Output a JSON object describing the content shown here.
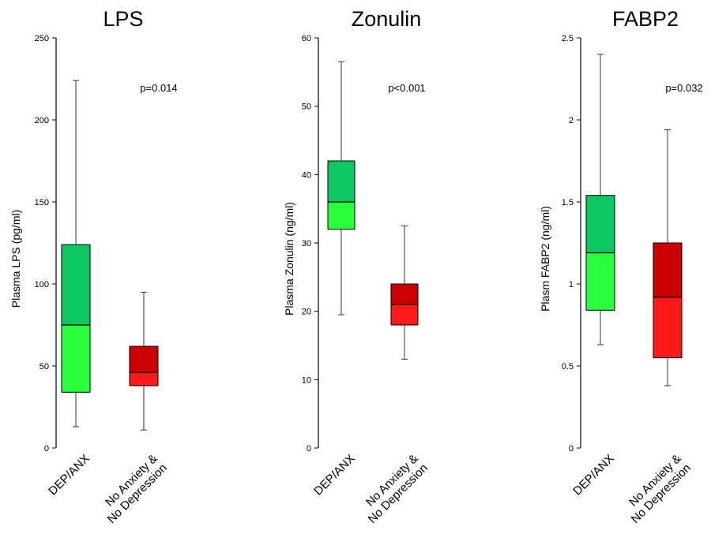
{
  "chart_data": [
    {
      "type": "box",
      "title": "LPS",
      "ylabel": "Plasma LPS (pg/ml)",
      "ylim": [
        0,
        250
      ],
      "yticks": [
        0,
        50,
        100,
        150,
        200,
        250
      ],
      "annotation": "p=0.014",
      "categories": [
        "DEP/ANX",
        "No Anxiety &\nNo Depression"
      ],
      "boxes": [
        {
          "min": 13,
          "q1": 34,
          "median": 75,
          "q3": 124,
          "max": 224
        },
        {
          "min": 11,
          "q1": 38,
          "median": 46,
          "q3": 62,
          "max": 95
        }
      ]
    },
    {
      "type": "box",
      "title": "Zonulin",
      "ylabel": "Plasma Zonulin (ng/ml)",
      "ylim": [
        0,
        60
      ],
      "yticks": [
        0,
        10,
        20,
        30,
        40,
        50,
        60
      ],
      "annotation": "p<0.001",
      "categories": [
        "DEP/ANX",
        "No Anxiety &\nNo Depression"
      ],
      "boxes": [
        {
          "min": 19.5,
          "q1": 32,
          "median": 36,
          "q3": 42,
          "max": 56.5
        },
        {
          "min": 13,
          "q1": 18,
          "median": 21,
          "q3": 24,
          "max": 32.5
        }
      ]
    },
    {
      "type": "box",
      "title": "FABP2",
      "ylabel": "Plasm FABP2 (ng/ml)",
      "ylim": [
        0,
        2.5
      ],
      "yticks": [
        0,
        0.5,
        1,
        1.5,
        2,
        2.5
      ],
      "annotation": "p=0.032",
      "categories": [
        "DEP/ANX",
        "No Anxiety &\nNo Depression"
      ],
      "boxes": [
        {
          "min": 0.63,
          "q1": 0.84,
          "median": 1.19,
          "q3": 1.54,
          "max": 2.4
        },
        {
          "min": 0.38,
          "q1": 0.55,
          "median": 0.92,
          "q3": 1.25,
          "max": 1.94
        }
      ]
    }
  ],
  "colors": {
    "group1_upper": "#0bc863",
    "group1_lower": "#2aff3e",
    "group2_upper": "#cc0000",
    "group2_lower": "#ff1a1a",
    "axis": "#000000",
    "whisker": "#333333"
  }
}
